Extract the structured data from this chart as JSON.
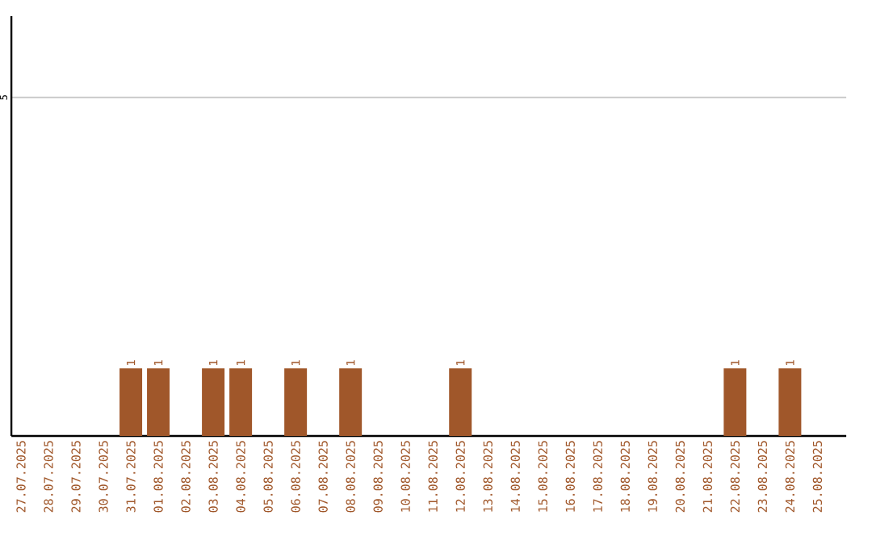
{
  "chart_data": {
    "type": "bar",
    "categories": [
      "27.07.2025",
      "28.07.2025",
      "29.07.2025",
      "30.07.2025",
      "31.07.2025",
      "01.08.2025",
      "02.08.2025",
      "03.08.2025",
      "04.08.2025",
      "05.08.2025",
      "06.08.2025",
      "07.08.2025",
      "08.08.2025",
      "09.08.2025",
      "10.08.2025",
      "11.08.2025",
      "12.08.2025",
      "13.08.2025",
      "14.08.2025",
      "15.08.2025",
      "16.08.2025",
      "17.08.2025",
      "18.08.2025",
      "19.08.2025",
      "20.08.2025",
      "21.08.2025",
      "22.08.2025",
      "23.08.2025",
      "24.08.2025",
      "25.08.2025"
    ],
    "values": [
      0,
      0,
      0,
      0,
      1,
      1,
      0,
      1,
      1,
      0,
      1,
      0,
      1,
      0,
      0,
      0,
      1,
      0,
      0,
      0,
      0,
      0,
      0,
      0,
      0,
      0,
      1,
      0,
      1,
      0
    ],
    "value_labels": [
      null,
      null,
      null,
      null,
      "1",
      "1",
      null,
      "1",
      "1",
      null,
      "1",
      null,
      "1",
      null,
      null,
      null,
      "1",
      null,
      null,
      null,
      null,
      null,
      null,
      null,
      null,
      null,
      "1",
      null,
      "1",
      null
    ],
    "color": "#a0572a",
    "ylim": [
      0,
      6.2
    ],
    "yticks": [
      5
    ],
    "grid": "y"
  }
}
